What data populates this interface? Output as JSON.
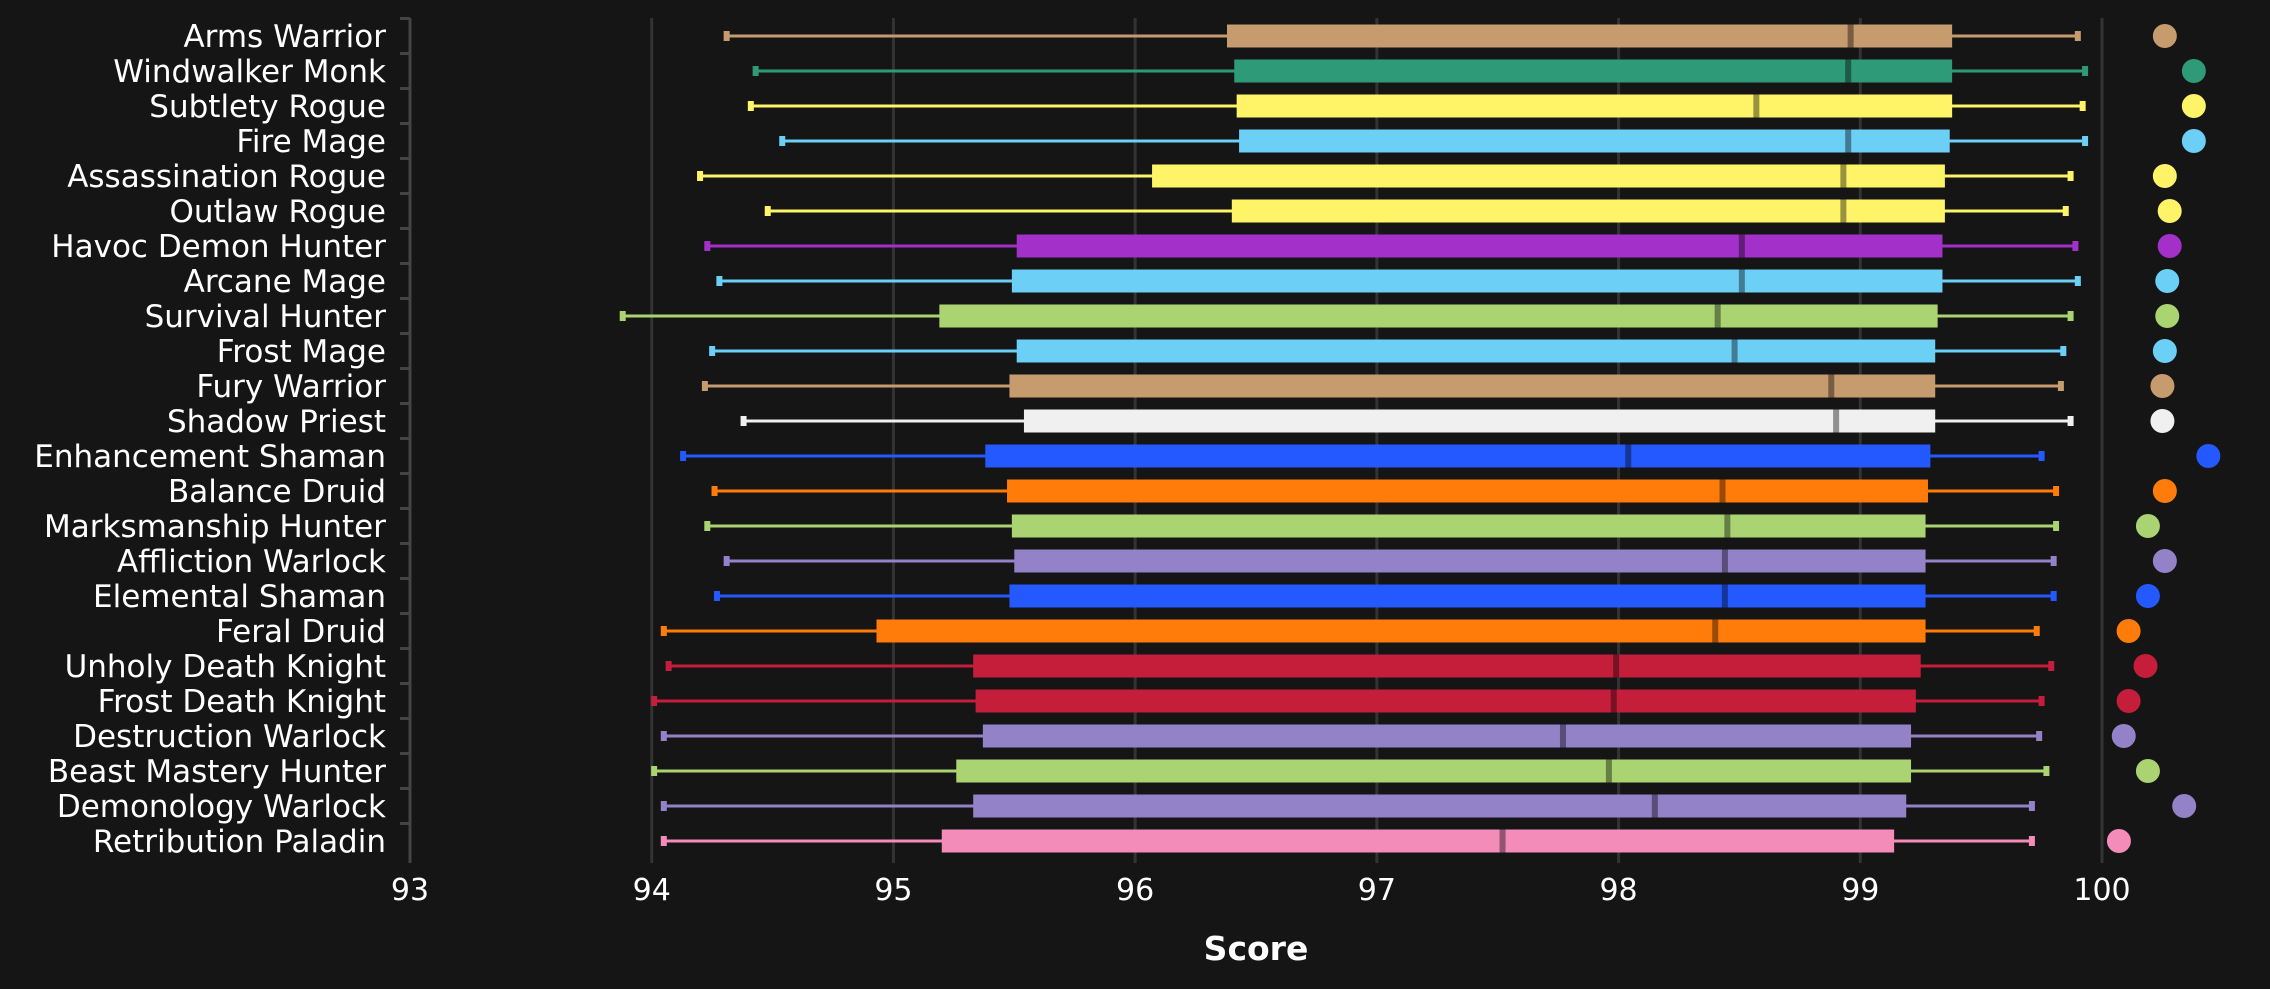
{
  "chart_data": {
    "type": "boxplot",
    "xlabel": "Score",
    "xlim": [
      93,
      100
    ],
    "xticks": [
      "93",
      "94",
      "95",
      "96",
      "97",
      "98",
      "99",
      "100"
    ],
    "grid": true,
    "legend": "none",
    "series": [
      {
        "name": "Arms Warrior",
        "color": "#C69B6D",
        "min": 94.31,
        "q1": 96.38,
        "median": 98.96,
        "q3": 99.38,
        "max": 99.9,
        "top": 100.26
      },
      {
        "name": "Windwalker Monk",
        "color": "#2E9A77",
        "min": 94.43,
        "q1": 96.41,
        "median": 98.95,
        "q3": 99.38,
        "max": 99.93,
        "top": 100.38
      },
      {
        "name": "Subtlety Rogue",
        "color": "#FFF468",
        "min": 94.41,
        "q1": 96.42,
        "median": 98.57,
        "q3": 99.38,
        "max": 99.92,
        "top": 100.38
      },
      {
        "name": "Fire Mage",
        "color": "#6CCFF6",
        "min": 94.54,
        "q1": 96.43,
        "median": 98.95,
        "q3": 99.37,
        "max": 99.93,
        "top": 100.38
      },
      {
        "name": "Assassination Rogue",
        "color": "#FFF468",
        "min": 94.2,
        "q1": 96.07,
        "median": 98.93,
        "q3": 99.35,
        "max": 99.87,
        "top": 100.26
      },
      {
        "name": "Outlaw Rogue",
        "color": "#FFF468",
        "min": 94.48,
        "q1": 96.4,
        "median": 98.93,
        "q3": 99.35,
        "max": 99.85,
        "top": 100.28
      },
      {
        "name": "Havoc Demon Hunter",
        "color": "#A330C9",
        "min": 94.23,
        "q1": 95.51,
        "median": 98.51,
        "q3": 99.34,
        "max": 99.89,
        "top": 100.28
      },
      {
        "name": "Arcane Mage",
        "color": "#6CCFF6",
        "min": 94.28,
        "q1": 95.49,
        "median": 98.51,
        "q3": 99.34,
        "max": 99.9,
        "top": 100.27
      },
      {
        "name": "Survival Hunter",
        "color": "#AAD372",
        "min": 93.88,
        "q1": 95.19,
        "median": 98.41,
        "q3": 99.32,
        "max": 99.87,
        "top": 100.27
      },
      {
        "name": "Frost Mage",
        "color": "#6CCFF6",
        "min": 94.25,
        "q1": 95.51,
        "median": 98.48,
        "q3": 99.31,
        "max": 99.84,
        "top": 100.26
      },
      {
        "name": "Fury Warrior",
        "color": "#C69B6D",
        "min": 94.22,
        "q1": 95.48,
        "median": 98.88,
        "q3": 99.31,
        "max": 99.83,
        "top": 100.25
      },
      {
        "name": "Shadow Priest",
        "color": "#F0F0F0",
        "min": 94.38,
        "q1": 95.54,
        "median": 98.9,
        "q3": 99.31,
        "max": 99.87,
        "top": 100.25
      },
      {
        "name": "Enhancement Shaman",
        "color": "#2459FF",
        "min": 94.13,
        "q1": 95.38,
        "median": 98.04,
        "q3": 99.29,
        "max": 99.75,
        "top": 100.44
      },
      {
        "name": "Balance Druid",
        "color": "#FF7C0A",
        "min": 94.26,
        "q1": 95.47,
        "median": 98.43,
        "q3": 99.28,
        "max": 99.81,
        "top": 100.26
      },
      {
        "name": "Marksmanship Hunter",
        "color": "#AAD372",
        "min": 94.23,
        "q1": 95.49,
        "median": 98.45,
        "q3": 99.27,
        "max": 99.81,
        "top": 100.19
      },
      {
        "name": "Affliction Warlock",
        "color": "#9482C9",
        "min": 94.31,
        "q1": 95.5,
        "median": 98.44,
        "q3": 99.27,
        "max": 99.8,
        "top": 100.26
      },
      {
        "name": "Elemental Shaman",
        "color": "#2459FF",
        "min": 94.27,
        "q1": 95.48,
        "median": 98.44,
        "q3": 99.27,
        "max": 99.8,
        "top": 100.19
      },
      {
        "name": "Feral Druid",
        "color": "#FF7C0A",
        "min": 94.05,
        "q1": 94.93,
        "median": 98.4,
        "q3": 99.27,
        "max": 99.73,
        "top": 100.11
      },
      {
        "name": "Unholy Death Knight",
        "color": "#C41E3A",
        "min": 94.07,
        "q1": 95.33,
        "median": 97.99,
        "q3": 99.25,
        "max": 99.79,
        "top": 100.18
      },
      {
        "name": "Frost Death Knight",
        "color": "#C41E3A",
        "min": 94.01,
        "q1": 95.34,
        "median": 97.98,
        "q3": 99.23,
        "max": 99.75,
        "top": 100.11
      },
      {
        "name": "Destruction Warlock",
        "color": "#9482C9",
        "min": 94.05,
        "q1": 95.37,
        "median": 97.77,
        "q3": 99.21,
        "max": 99.74,
        "top": 100.09
      },
      {
        "name": "Beast Mastery Hunter",
        "color": "#AAD372",
        "min": 94.01,
        "q1": 95.26,
        "median": 97.96,
        "q3": 99.21,
        "max": 99.77,
        "top": 100.19
      },
      {
        "name": "Demonology Warlock",
        "color": "#9482C9",
        "min": 94.05,
        "q1": 95.33,
        "median": 98.15,
        "q3": 99.19,
        "max": 99.71,
        "top": 100.34
      },
      {
        "name": "Retribution Paladin",
        "color": "#F48CBA",
        "min": 94.05,
        "q1": 95.2,
        "median": 97.52,
        "q3": 99.14,
        "max": 99.71,
        "top": 100.07
      }
    ]
  }
}
